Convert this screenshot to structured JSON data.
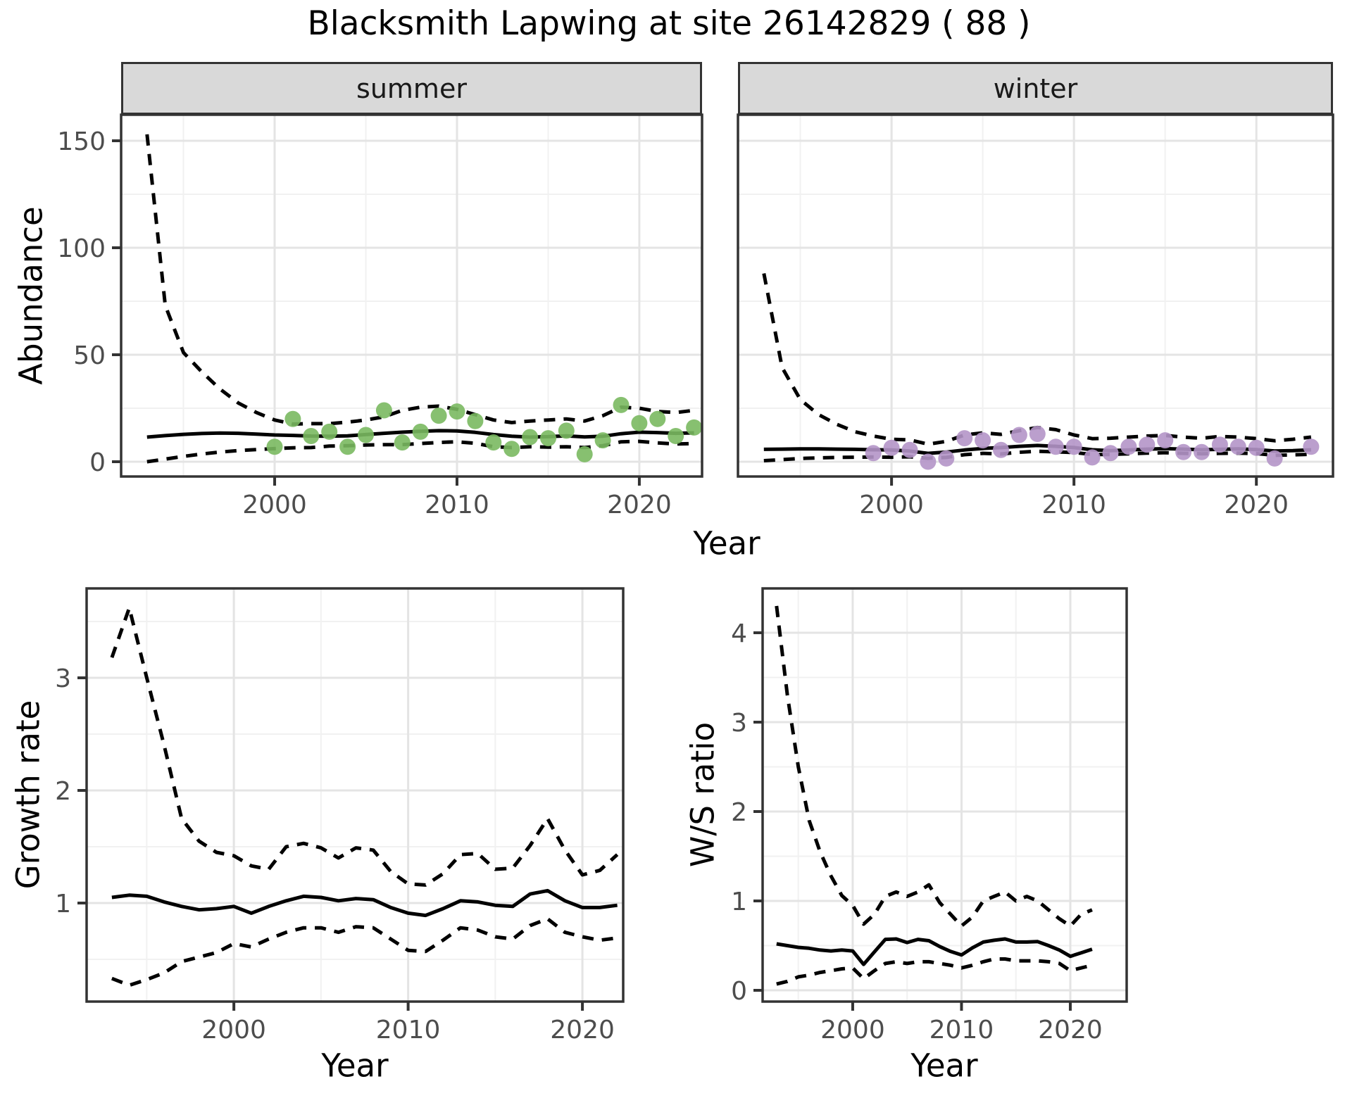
{
  "title": "Blacksmith Lapwing at site 26142829 ( 88 )",
  "colors": {
    "summer_point": "#7ab960",
    "winter_point": "#b495c8",
    "line": "#000000",
    "panel_border": "#333333",
    "strip_fill": "#d9d9d9",
    "grid_major": "#e4e4e4",
    "grid_minor": "#f1f1f1",
    "tick_label": "#4d4d4d",
    "background": "#ffffff"
  },
  "chart_data": [
    {
      "id": "abundance_summer",
      "type": "line",
      "facet_label": "summer",
      "xlabel": "Year",
      "ylabel": "Abundance",
      "x_range": [
        1991.58,
        2023.44
      ],
      "y_range": [
        -6.91,
        162.17
      ],
      "xticks": [
        2000,
        2010,
        2020
      ],
      "xticks_minor": [
        1995,
        2005,
        2015
      ],
      "yticks": [
        0,
        50,
        100,
        150
      ],
      "yticks_minor": [
        25,
        75,
        125
      ],
      "show_y_axis": true,
      "years": [
        1993,
        1994,
        1995,
        1996,
        1997,
        1998,
        1999,
        2000,
        2001,
        2002,
        2003,
        2004,
        2005,
        2006,
        2007,
        2008,
        2009,
        2010,
        2011,
        2012,
        2013,
        2014,
        2015,
        2016,
        2017,
        2018,
        2019,
        2020,
        2021,
        2022,
        2023
      ],
      "series": [
        {
          "name": "median",
          "style": "solid",
          "values": [
            11.5,
            12.2,
            12.8,
            13.2,
            13.4,
            13.3,
            12.9,
            12.5,
            12.3,
            12.0,
            11.9,
            12.1,
            12.7,
            13.3,
            13.8,
            14.2,
            14.5,
            14.4,
            13.7,
            12.7,
            11.9,
            11.5,
            11.7,
            12.1,
            11.6,
            11.9,
            13.1,
            13.8,
            13.6,
            13.3,
            13.5
          ]
        },
        {
          "name": "upper_ci",
          "style": "dashed",
          "values": [
            153,
            73,
            51,
            42,
            34,
            27.5,
            23,
            19.5,
            17.6,
            17.8,
            17.8,
            18.5,
            19.5,
            21,
            24,
            25.5,
            26,
            24.5,
            22,
            19.5,
            18.3,
            19,
            19.5,
            20,
            19,
            21.5,
            25.5,
            25,
            23.5,
            23,
            24
          ]
        },
        {
          "name": "lower_ci",
          "style": "dashed",
          "values": [
            0,
            1.2,
            2.5,
            3.6,
            4.5,
            5.2,
            5.7,
            6.1,
            6.5,
            6.6,
            7.3,
            7.5,
            7.8,
            8,
            8,
            8.5,
            9,
            9.3,
            8.6,
            7,
            6.6,
            7,
            6.8,
            7,
            6.6,
            7.5,
            9.3,
            9.5,
            8.8,
            8.3,
            8.5
          ]
        }
      ],
      "points": {
        "color_key": "summer_point",
        "years": [
          2000,
          2001,
          2002,
          2003,
          2004,
          2005,
          2006,
          2007,
          2008,
          2009,
          2010,
          2011,
          2012,
          2013,
          2014,
          2015,
          2016,
          2017,
          2018,
          2019,
          2020,
          2021,
          2022,
          2023
        ],
        "values": [
          7,
          20,
          12,
          14,
          7,
          12.5,
          24,
          9,
          14,
          21.5,
          23.5,
          19,
          9,
          6,
          11.5,
          11,
          14.5,
          3.5,
          10,
          26.5,
          18,
          20,
          12,
          16
        ]
      }
    },
    {
      "id": "abundance_winter",
      "type": "line",
      "facet_label": "winter",
      "xlabel": "Year",
      "ylabel": "Abundance",
      "x_range": [
        1991.58,
        2024.2
      ],
      "y_range": [
        -6.91,
        162.17
      ],
      "xticks": [
        2000,
        2010,
        2020
      ],
      "xticks_minor": [
        1995,
        2005,
        2015
      ],
      "yticks": [
        0,
        50,
        100,
        150
      ],
      "yticks_minor": [
        25,
        75,
        125
      ],
      "show_y_axis": false,
      "years": [
        1993,
        1994,
        1995,
        1996,
        1997,
        1998,
        1999,
        2000,
        2001,
        2002,
        2003,
        2004,
        2005,
        2006,
        2007,
        2008,
        2009,
        2010,
        2011,
        2012,
        2013,
        2014,
        2015,
        2016,
        2017,
        2018,
        2019,
        2020,
        2021,
        2022,
        2023
      ],
      "series": [
        {
          "name": "median",
          "style": "solid",
          "values": [
            5.8,
            5.9,
            6.0,
            6.0,
            5.9,
            5.8,
            5.6,
            5.5,
            5.0,
            3.9,
            4.5,
            5.5,
            6.2,
            6.6,
            7.2,
            7.6,
            7.2,
            6.6,
            5.6,
            5.2,
            5.5,
            5.9,
            6.1,
            5.9,
            5.6,
            5.8,
            6.0,
            5.7,
            5.0,
            5.2,
            5.6
          ]
        },
        {
          "name": "upper_ci",
          "style": "dashed",
          "values": [
            88,
            44,
            29,
            22,
            17.5,
            14,
            12,
            10.5,
            10.2,
            8.2,
            9.5,
            12.5,
            13.5,
            12.8,
            14.5,
            16,
            15,
            12.5,
            10.8,
            11,
            11.5,
            12,
            12.3,
            11.5,
            11,
            11.8,
            11.5,
            10.8,
            9.8,
            10.5,
            11.5
          ]
        },
        {
          "name": "lower_ci",
          "style": "dashed",
          "values": [
            0.5,
            1,
            1.5,
            1.8,
            2,
            2.1,
            2.2,
            2.1,
            2.3,
            1.6,
            2,
            3.3,
            3.9,
            3.6,
            4.4,
            4.9,
            4.6,
            4.3,
            3.4,
            3.4,
            3.7,
            4,
            4.2,
            3.9,
            3.7,
            3.9,
            4,
            3.8,
            3,
            3.2,
            3.5
          ]
        }
      ],
      "points": {
        "color_key": "winter_point",
        "years": [
          1999,
          2000,
          2001,
          2002,
          2003,
          2004,
          2005,
          2006,
          2007,
          2008,
          2009,
          2010,
          2011,
          2012,
          2013,
          2014,
          2015,
          2016,
          2017,
          2018,
          2019,
          2020,
          2021,
          2023
        ],
        "values": [
          4,
          6.5,
          5.5,
          0,
          1.5,
          11,
          10,
          5.5,
          12.5,
          13,
          7,
          7,
          2,
          4,
          7,
          8,
          10,
          4.5,
          4.5,
          8,
          7,
          6.5,
          1.5,
          7
        ]
      }
    },
    {
      "id": "growth_rate",
      "type": "line",
      "facet_label": "",
      "xlabel": "Year",
      "ylabel": "Growth rate",
      "x_range": [
        1991.55,
        2022.34
      ],
      "y_range": [
        0.125,
        3.794
      ],
      "xticks": [
        2000,
        2010,
        2020
      ],
      "xticks_minor": [
        1995,
        2005,
        2015
      ],
      "yticks": [
        1,
        2,
        3
      ],
      "yticks_minor": [
        0.5,
        1.5,
        2.5,
        3.5
      ],
      "show_y_axis": true,
      "years": [
        1993,
        1994,
        1995,
        1996,
        1997,
        1998,
        1999,
        2000,
        2001,
        2002,
        2003,
        2004,
        2005,
        2006,
        2007,
        2008,
        2009,
        2010,
        2011,
        2012,
        2013,
        2014,
        2015,
        2016,
        2017,
        2018,
        2019,
        2020,
        2021,
        2022
      ],
      "series": [
        {
          "name": "median",
          "style": "solid",
          "values": [
            1.05,
            1.07,
            1.06,
            1.01,
            0.97,
            0.94,
            0.95,
            0.97,
            0.91,
            0.97,
            1.02,
            1.06,
            1.05,
            1.02,
            1.04,
            1.03,
            0.96,
            0.91,
            0.89,
            0.95,
            1.02,
            1.01,
            0.98,
            0.97,
            1.08,
            1.11,
            1.02,
            0.96,
            0.96,
            0.98
          ]
        },
        {
          "name": "upper_ci",
          "style": "dashed",
          "values": [
            3.18,
            3.62,
            3.0,
            2.4,
            1.75,
            1.55,
            1.45,
            1.42,
            1.33,
            1.3,
            1.5,
            1.53,
            1.49,
            1.4,
            1.49,
            1.47,
            1.28,
            1.17,
            1.16,
            1.26,
            1.43,
            1.44,
            1.3,
            1.31,
            1.51,
            1.75,
            1.47,
            1.25,
            1.29,
            1.43
          ]
        },
        {
          "name": "lower_ci",
          "style": "dashed",
          "values": [
            0.33,
            0.27,
            0.32,
            0.38,
            0.48,
            0.52,
            0.56,
            0.64,
            0.61,
            0.68,
            0.74,
            0.78,
            0.78,
            0.74,
            0.79,
            0.78,
            0.68,
            0.58,
            0.57,
            0.67,
            0.78,
            0.76,
            0.7,
            0.68,
            0.8,
            0.86,
            0.74,
            0.7,
            0.67,
            0.69
          ]
        }
      ],
      "points": null
    },
    {
      "id": "ws_ratio",
      "type": "line",
      "facet_label": "",
      "xlabel": "Year",
      "ylabel": "W/S ratio",
      "x_range": [
        1991.72,
        2025.18
      ],
      "y_range": [
        -0.126,
        4.496
      ],
      "xticks": [
        2000,
        2010,
        2020
      ],
      "xticks_minor": [
        1995,
        2005,
        2015
      ],
      "yticks": [
        0,
        1,
        2,
        3,
        4
      ],
      "yticks_minor": [
        0.5,
        1.5,
        2.5,
        3.5
      ],
      "show_y_axis": true,
      "years": [
        1993,
        1994,
        1995,
        1996,
        1997,
        1998,
        1999,
        2000,
        2001,
        2002,
        2003,
        2004,
        2005,
        2006,
        2007,
        2008,
        2009,
        2010,
        2011,
        2012,
        2013,
        2014,
        2015,
        2016,
        2017,
        2018,
        2019,
        2020,
        2021,
        2022
      ],
      "series": [
        {
          "name": "median",
          "style": "solid",
          "values": [
            0.52,
            0.5,
            0.48,
            0.47,
            0.45,
            0.44,
            0.45,
            0.44,
            0.29,
            0.43,
            0.57,
            0.575,
            0.535,
            0.57,
            0.555,
            0.49,
            0.435,
            0.395,
            0.475,
            0.54,
            0.56,
            0.575,
            0.54,
            0.54,
            0.545,
            0.5,
            0.45,
            0.38,
            0.42,
            0.46
          ]
        },
        {
          "name": "upper_ci",
          "style": "dashed",
          "values": [
            4.3,
            3.3,
            2.5,
            1.9,
            1.55,
            1.28,
            1.06,
            0.95,
            0.74,
            0.85,
            1.05,
            1.1,
            1.05,
            1.1,
            1.18,
            0.98,
            0.85,
            0.72,
            0.82,
            1.0,
            1.05,
            1.1,
            1.0,
            1.05,
            1.0,
            0.9,
            0.8,
            0.72,
            0.85,
            0.9
          ]
        },
        {
          "name": "lower_ci",
          "style": "dashed",
          "values": [
            0.07,
            0.1,
            0.15,
            0.17,
            0.2,
            0.22,
            0.24,
            0.25,
            0.13,
            0.22,
            0.3,
            0.32,
            0.3,
            0.32,
            0.32,
            0.3,
            0.28,
            0.25,
            0.28,
            0.32,
            0.35,
            0.35,
            0.33,
            0.33,
            0.33,
            0.32,
            0.3,
            0.22,
            0.25,
            0.28
          ]
        }
      ],
      "points": null
    }
  ]
}
